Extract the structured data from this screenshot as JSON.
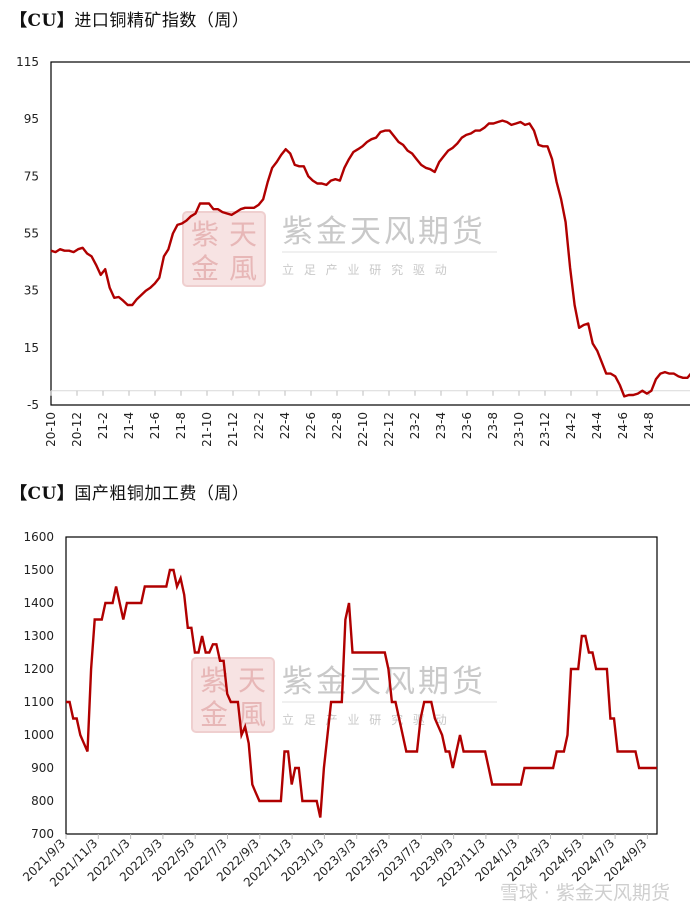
{
  "charts_meta": {
    "line_color": "#b00000",
    "frame_color": "#000000",
    "grid_color": "#d9d9d9"
  },
  "watermark": {
    "brand": "紫金天风期货",
    "slogan": "立 足 产 业   研 究 驱 动",
    "seal_chars": [
      "紫",
      "天",
      "金",
      "風"
    ],
    "footer": "雪球 · 紫金天风期货"
  },
  "chart_data": [
    {
      "type": "line",
      "title": "【CU】进口铜精矿指数（周）",
      "title_bracket": "【CU】",
      "title_text": "进口铜精矿指数（周）",
      "xlabel": "",
      "ylabel": "",
      "ylim": [
        -5,
        115
      ],
      "yticks": [
        -5,
        15,
        35,
        55,
        75,
        95,
        115
      ],
      "categories": [
        "20-10",
        "20-12",
        "21-2",
        "21-4",
        "21-6",
        "21-8",
        "21-10",
        "21-12",
        "22-2",
        "22-4",
        "22-6",
        "22-8",
        "22-10",
        "22-12",
        "23-2",
        "23-4",
        "23-6",
        "23-8",
        "23-10",
        "23-12",
        "24-2",
        "24-4",
        "24-6",
        "24-8"
      ],
      "grid": false,
      "legend": "none",
      "series": [
        {
          "name": "进口铜精矿指数",
          "values": [
            49.0,
            48.5,
            49.5,
            49.0,
            49.0,
            48.5,
            49.5,
            50.0,
            48.0,
            47.0,
            44.0,
            40.5,
            42.5,
            36.0,
            32.5,
            32.8,
            31.5,
            30.0,
            30.0,
            32.0,
            33.5,
            35.0,
            36.0,
            37.5,
            39.5,
            47.0,
            49.5,
            55.0,
            58.0,
            58.5,
            59.5,
            61.0,
            62.0,
            65.5,
            65.5,
            65.5,
            63.5,
            63.5,
            62.5,
            62.0,
            61.5,
            62.5,
            63.5,
            64.0,
            64.0,
            64.0,
            65.0,
            67.0,
            73.0,
            78.0,
            80.0,
            82.5,
            84.5,
            83.0,
            79.0,
            78.5,
            78.5,
            75.0,
            73.5,
            72.5,
            72.5,
            72.0,
            73.5,
            74.0,
            73.5,
            78.0,
            81.0,
            83.5,
            84.5,
            85.5,
            87.0,
            88.0,
            88.5,
            90.5,
            91.0,
            91.0,
            89.0,
            87.0,
            86.0,
            84.0,
            83.0,
            81.0,
            79.0,
            78.0,
            77.5,
            76.5,
            80.0,
            82.0,
            84.0,
            85.0,
            86.5,
            88.5,
            89.5,
            90.0,
            91.0,
            91.0,
            92.0,
            93.5,
            93.5,
            94.0,
            94.5,
            94.0,
            93.0,
            93.5,
            94.0,
            93.0,
            93.5,
            91.0,
            86.0,
            85.5,
            85.5,
            81.0,
            73.0,
            67.0,
            59.0,
            43.0,
            30.0,
            22.0,
            23.0,
            23.5,
            16.5,
            14.0,
            10.0,
            6.0,
            6.0,
            5.0,
            2.0,
            -2.0,
            -1.5,
            -1.5,
            -1.0,
            0.0,
            -1.0,
            0.0,
            4.0,
            6.0,
            6.5,
            6.0,
            6.0,
            5.0,
            4.5,
            4.5,
            6.5
          ]
        }
      ]
    },
    {
      "type": "line",
      "title": "【CU】国产粗铜加工费（周）",
      "title_bracket": "【CU】",
      "title_text": "国产粗铜加工费（周）",
      "xlabel": "",
      "ylabel": "",
      "ylim": [
        700,
        1600
      ],
      "yticks": [
        700,
        800,
        900,
        1000,
        1100,
        1200,
        1300,
        1400,
        1500,
        1600
      ],
      "categories": [
        "2021/9/3",
        "2021/11/3",
        "2022/1/3",
        "2022/3/3",
        "2022/5/3",
        "2022/7/3",
        "2022/9/3",
        "2022/11/3",
        "2023/1/3",
        "2023/3/3",
        "2023/5/3",
        "2023/7/3",
        "2023/9/3",
        "2023/11/3",
        "2024/1/3",
        "2024/3/3",
        "2024/5/3",
        "2024/7/3",
        "2024/9/3"
      ],
      "grid": false,
      "legend": "none",
      "series": [
        {
          "name": "国产粗铜加工费",
          "values": [
            1100,
            1100,
            1050,
            1050,
            1000,
            975,
            950,
            1200,
            1350,
            1350,
            1350,
            1400,
            1400,
            1400,
            1450,
            1400,
            1350,
            1400,
            1400,
            1400,
            1400,
            1400,
            1450,
            1450,
            1450,
            1450,
            1450,
            1450,
            1450,
            1500,
            1500,
            1450,
            1475,
            1425,
            1325,
            1325,
            1250,
            1250,
            1300,
            1250,
            1250,
            1275,
            1275,
            1225,
            1225,
            1125,
            1100,
            1100,
            1100,
            1000,
            1025,
            975,
            850,
            825,
            800,
            800,
            800,
            800,
            800,
            800,
            800,
            950,
            950,
            850,
            900,
            900,
            800,
            800,
            800,
            800,
            800,
            750,
            900,
            1000,
            1100,
            1100,
            1100,
            1100,
            1350,
            1400,
            1250,
            1250,
            1250,
            1250,
            1250,
            1250,
            1250,
            1250,
            1250,
            1250,
            1200,
            1100,
            1100,
            1050,
            1000,
            950,
            950,
            950,
            950,
            1050,
            1100,
            1100,
            1100,
            1050,
            1025,
            1000,
            950,
            950,
            900,
            950,
            1000,
            950,
            950,
            950,
            950,
            950,
            950,
            950,
            900,
            850,
            850,
            850,
            850,
            850,
            850,
            850,
            850,
            850,
            900,
            900,
            900,
            900,
            900,
            900,
            900,
            900,
            900,
            950,
            950,
            950,
            1000,
            1200,
            1200,
            1200,
            1300,
            1300,
            1250,
            1250,
            1200,
            1200,
            1200,
            1200,
            1050,
            1050,
            950,
            950,
            950,
            950,
            950,
            950,
            900,
            900,
            900,
            900,
            900,
            900
          ]
        }
      ]
    }
  ]
}
